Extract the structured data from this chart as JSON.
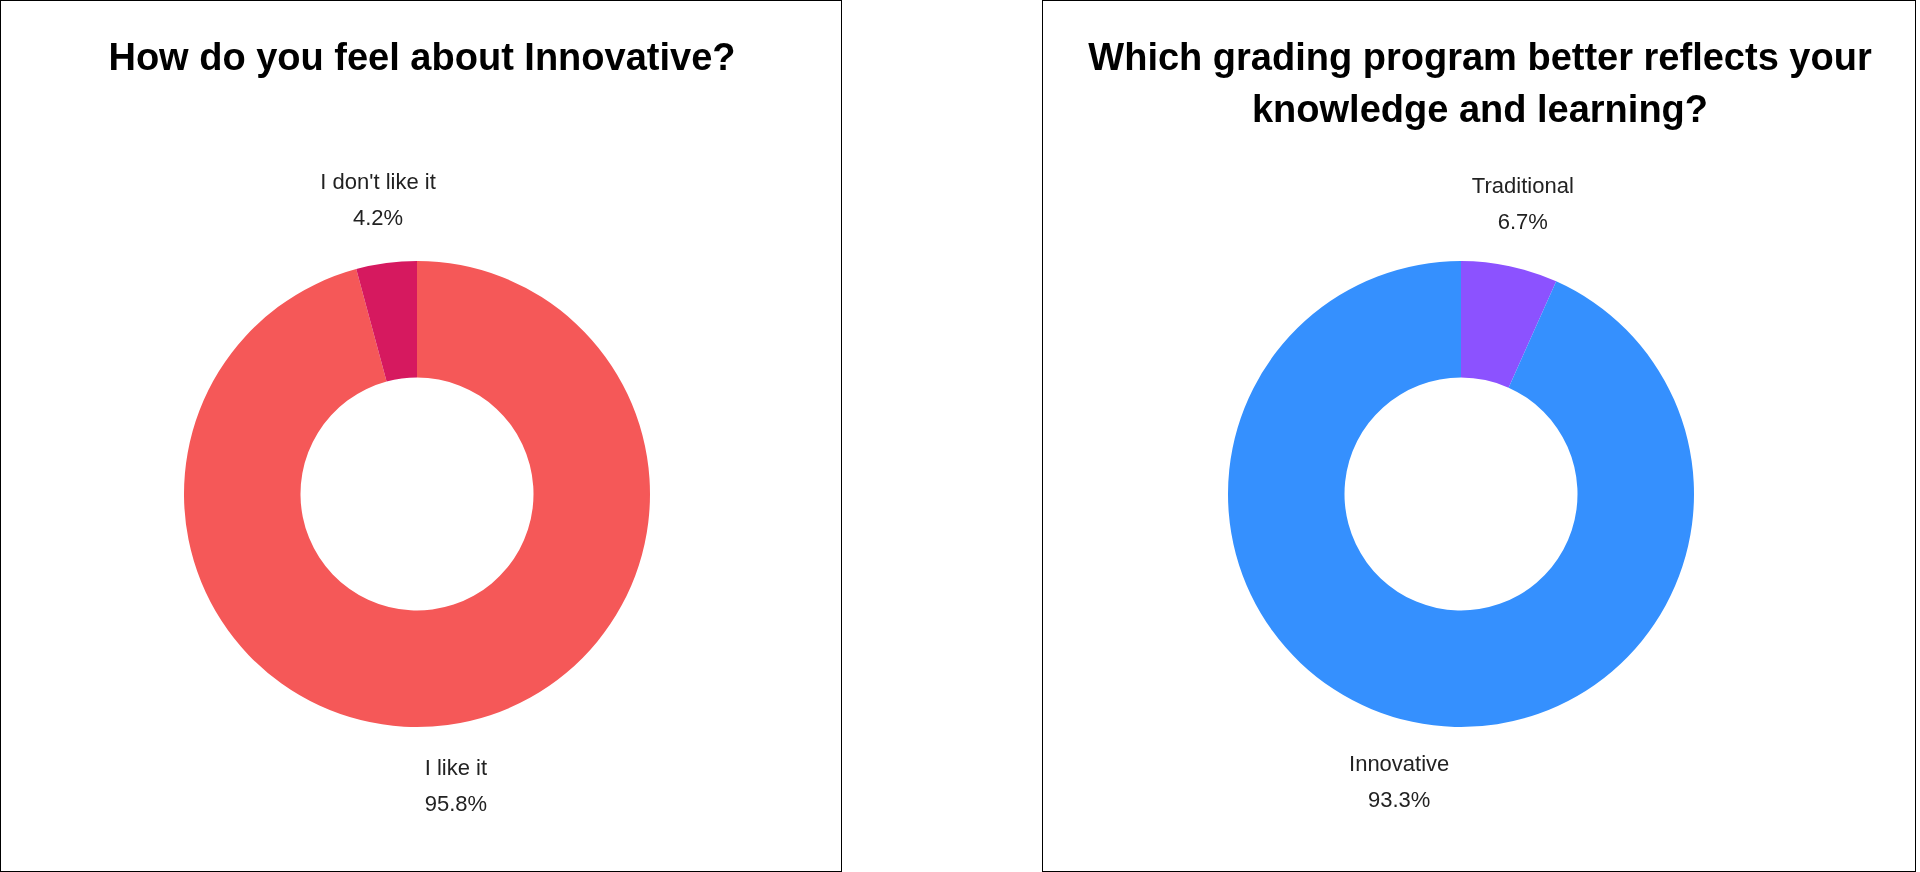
{
  "chart_data": [
    {
      "type": "donut",
      "title": "How do you feel about Innovative?",
      "categories": [
        "I like it",
        "I don't like it"
      ],
      "values": [
        95.8,
        4.2
      ],
      "colors": [
        "#f55858",
        "#d6195f"
      ],
      "value_labels": [
        "95.8%",
        "4.2%"
      ],
      "legend": false
    },
    {
      "type": "donut",
      "title": "Which grading program better reflects your knowledge and learning?",
      "categories": [
        "Traditional",
        "Innovative"
      ],
      "values": [
        6.7,
        93.3
      ],
      "colors": [
        "#8c52ff",
        "#3590fe"
      ],
      "value_labels": [
        "6.7%",
        "93.3%"
      ],
      "legend": false
    }
  ]
}
